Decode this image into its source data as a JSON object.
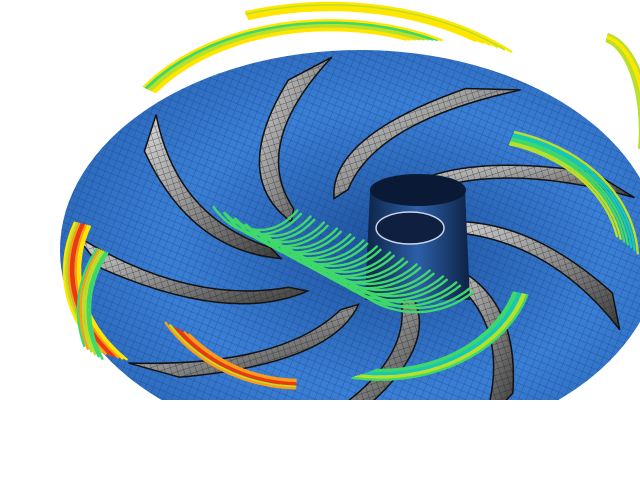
{
  "scene": {
    "subject": "impeller",
    "background_color": "#ffffff",
    "hub_color": "#3a7fd6",
    "blade_color": "#9a9a9a",
    "mesh_line_color": "#1a1a1a",
    "streamline_colors": [
      "#ffe600",
      "#b8e02a",
      "#3fd86a",
      "#19c8b0",
      "#ff9a1a",
      "#e83a12"
    ]
  }
}
